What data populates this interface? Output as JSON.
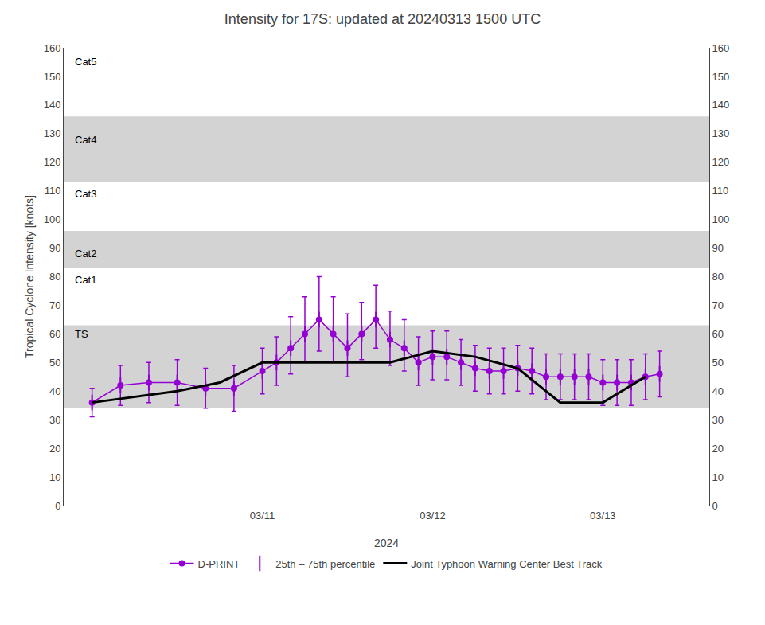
{
  "chart_data": {
    "type": "line",
    "title": "Intensity for 17S: updated at 20240313 1500 UTC",
    "xlabel": "2024",
    "ylabel": "Tropical Cyclone Intensity [knots]",
    "xlim": [
      -4,
      87
    ],
    "xticks": [
      {
        "value": 24,
        "label": "03/11"
      },
      {
        "value": 48,
        "label": "03/12"
      },
      {
        "value": 72,
        "label": "03/13"
      }
    ],
    "ylim": [
      0,
      160
    ],
    "yticks": [
      0,
      10,
      20,
      30,
      40,
      50,
      60,
      70,
      80,
      90,
      100,
      110,
      120,
      130,
      140,
      150,
      160
    ],
    "y2lim": [
      0,
      160
    ],
    "y2ticks": [
      0,
      10,
      20,
      30,
      40,
      50,
      60,
      70,
      80,
      90,
      100,
      110,
      120,
      130,
      140,
      150,
      160
    ],
    "grid": false,
    "legend": "bottom",
    "series": [
      {
        "name": "D-PRINT",
        "color": "#9400D3",
        "marker": "circle",
        "line_style": "solid",
        "x": [
          0,
          4,
          8,
          12,
          16,
          20,
          24,
          26,
          28,
          30,
          32,
          34,
          36,
          38,
          40,
          42,
          44,
          46,
          48,
          50,
          52,
          54,
          56,
          58,
          60,
          62,
          64,
          66,
          68,
          70,
          72,
          74,
          76,
          78,
          80
        ],
        "values": [
          36,
          42,
          43,
          43,
          41,
          41,
          47,
          50,
          55,
          60,
          65,
          60,
          55,
          60,
          65,
          58,
          55,
          50,
          52,
          52,
          50,
          48,
          47,
          47,
          48,
          47,
          45,
          45,
          45,
          45,
          43,
          43,
          43,
          45,
          46
        ],
        "error_low": [
          5,
          7,
          7,
          8,
          7,
          8,
          8,
          8,
          9,
          10,
          11,
          10,
          10,
          9,
          10,
          9,
          8,
          8,
          8,
          8,
          8,
          8,
          8,
          8,
          8,
          8,
          8,
          8,
          8,
          8,
          8,
          8,
          8,
          8,
          8
        ],
        "error_high": [
          5,
          7,
          7,
          8,
          7,
          8,
          8,
          9,
          11,
          13,
          15,
          13,
          12,
          11,
          12,
          10,
          10,
          9,
          9,
          9,
          8,
          8,
          8,
          8,
          8,
          8,
          8,
          8,
          8,
          8,
          8,
          8,
          8,
          8,
          8
        ],
        "error_name": "25th – 75th percentile"
      },
      {
        "name": "Joint Typhoon Warning Center Best Track",
        "color": "#000000",
        "line_style": "solid",
        "x": [
          0,
          6,
          12,
          18,
          24,
          30,
          36,
          42,
          48,
          54,
          60,
          66,
          72,
          78
        ],
        "values": [
          36,
          38,
          40,
          43,
          50,
          50,
          50,
          50,
          54,
          52,
          48,
          36,
          36,
          45
        ]
      }
    ],
    "bands": [
      {
        "ymin": 34,
        "ymax": 63,
        "color": "#d3d3d3"
      },
      {
        "ymin": 83,
        "ymax": 96,
        "color": "#d3d3d3"
      },
      {
        "ymin": 113,
        "ymax": 136,
        "color": "#d3d3d3"
      }
    ],
    "annotations": [
      {
        "text": "Cat5",
        "y": 155
      },
      {
        "text": "Cat4",
        "y": 128
      },
      {
        "text": "Cat3",
        "y": 109
      },
      {
        "text": "Cat2",
        "y": 88
      },
      {
        "text": "Cat1",
        "y": 79
      },
      {
        "text": "TS",
        "y": 60
      }
    ]
  }
}
